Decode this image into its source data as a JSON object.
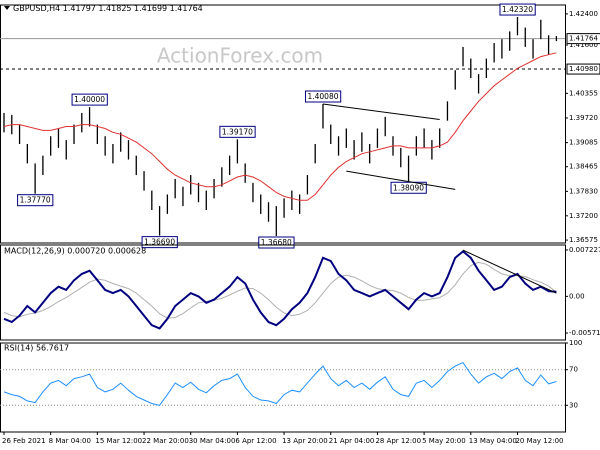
{
  "watermark": "ActionForex.com",
  "chart_data": [
    {
      "type": "ohlc",
      "title": "GBPUSD,H4 1.41797 1.41825 1.41699 1.41764",
      "color": "#000000",
      "high": [
        1.3985,
        1.398,
        1.3955,
        1.3905,
        1.3855,
        1.3875,
        1.3925,
        1.3945,
        1.3915,
        1.3955,
        1.3985,
        1.4,
        1.3955,
        1.3925,
        1.3905,
        1.3935,
        1.3915,
        1.3875,
        1.3835,
        1.3785,
        1.3745,
        1.3775,
        1.3815,
        1.3795,
        1.3825,
        1.3805,
        1.3785,
        1.3815,
        1.3845,
        1.3875,
        1.3917,
        1.3855,
        1.3805,
        1.3775,
        1.3755,
        1.3745,
        1.3765,
        1.3785,
        1.3775,
        1.3825,
        1.3905,
        1.4008,
        1.3955,
        1.3925,
        1.3945,
        1.3915,
        1.3935,
        1.3905,
        1.3945,
        1.3975,
        1.3925,
        1.3895,
        1.3875,
        1.3925,
        1.3945,
        1.3915,
        1.3945,
        1.4015,
        1.4095,
        1.4155,
        1.4125,
        1.4085,
        1.4125,
        1.4165,
        1.4175,
        1.4195,
        1.4232,
        1.4205,
        1.4175,
        1.4225,
        1.4185,
        1.4183
      ],
      "low": [
        1.3935,
        1.393,
        1.3905,
        1.3855,
        1.3777,
        1.3825,
        1.3875,
        1.3895,
        1.3865,
        1.3905,
        1.3935,
        1.395,
        1.3905,
        1.3875,
        1.3855,
        1.3885,
        1.3865,
        1.3825,
        1.3785,
        1.3735,
        1.3669,
        1.3725,
        1.3765,
        1.3745,
        1.3775,
        1.3755,
        1.3735,
        1.3765,
        1.3795,
        1.3825,
        1.3855,
        1.3805,
        1.3755,
        1.3725,
        1.3705,
        1.3668,
        1.3715,
        1.3735,
        1.3725,
        1.3775,
        1.3855,
        1.3945,
        1.3905,
        1.3875,
        1.3895,
        1.3865,
        1.3885,
        1.3855,
        1.3895,
        1.3925,
        1.3875,
        1.3845,
        1.3809,
        1.3875,
        1.3895,
        1.3865,
        1.3895,
        1.3965,
        1.4045,
        1.4105,
        1.4075,
        1.4035,
        1.4075,
        1.4115,
        1.4125,
        1.4145,
        1.4185,
        1.4155,
        1.4125,
        1.4175,
        1.4135,
        1.417
      ],
      "ma": {
        "color": "#e03030",
        "values": [
          1.395,
          1.3955,
          1.3955,
          1.395,
          1.3945,
          1.394,
          1.394,
          1.3945,
          1.395,
          1.395,
          1.3955,
          1.3955,
          1.395,
          1.3945,
          1.3935,
          1.393,
          1.392,
          1.391,
          1.3895,
          1.388,
          1.386,
          1.384,
          1.3825,
          1.3815,
          1.3805,
          1.38,
          1.3795,
          1.3795,
          1.38,
          1.381,
          1.382,
          1.3825,
          1.382,
          1.381,
          1.3795,
          1.378,
          1.377,
          1.3765,
          1.376,
          1.376,
          1.3775,
          1.38,
          1.3825,
          1.3845,
          1.386,
          1.387,
          1.388,
          1.3885,
          1.389,
          1.3895,
          1.39,
          1.39,
          1.3895,
          1.3895,
          1.3895,
          1.3895,
          1.39,
          1.391,
          1.3935,
          1.3965,
          1.399,
          1.4015,
          1.4035,
          1.4055,
          1.407,
          1.4085,
          1.41,
          1.411,
          1.412,
          1.413,
          1.4135,
          1.414
        ]
      },
      "ylim": [
        1.365,
        1.4263
      ],
      "yticks": [
        {
          "value": 1.424,
          "label": "1.42400"
        },
        {
          "value": 1.416,
          "label": "1.41600"
        },
        {
          "value": 1.40355,
          "label": "1.40355"
        },
        {
          "value": 1.3972,
          "label": "1.39720"
        },
        {
          "value": 1.39085,
          "label": "1.39085"
        },
        {
          "value": 1.38465,
          "label": "1.38465"
        },
        {
          "value": 1.3783,
          "label": "1.37830"
        },
        {
          "value": 1.372,
          "label": "1.37200"
        },
        {
          "value": 1.36575,
          "label": "1.36575"
        }
      ],
      "levels": [
        {
          "value": 1.41764,
          "label": "1.41764",
          "style": "solid"
        },
        {
          "value": 1.4098,
          "label": "1.40980",
          "style": "dashed"
        }
      ],
      "annotations": [
        {
          "value": 1.4,
          "label": "1.40000"
        },
        {
          "value": 1.3777,
          "label": "1.37770"
        },
        {
          "value": 1.3917,
          "label": "1.39170"
        },
        {
          "value": 1.3669,
          "label": "1.36690"
        },
        {
          "value": 1.3668,
          "label": "1.36680"
        },
        {
          "value": 1.4008,
          "label": "1.40080"
        },
        {
          "value": 1.3809,
          "label": "1.38090"
        },
        {
          "value": 1.4232,
          "label": "1.42320"
        }
      ],
      "trendlines": [
        {
          "from": [
            41,
            1.4008
          ],
          "to": [
            56,
            1.3968
          ]
        },
        {
          "from": [
            44,
            1.3835
          ],
          "to": [
            58,
            1.3788
          ]
        }
      ]
    },
    {
      "type": "macd",
      "title": "MACD(12,26,9) 0.000720 0.000628",
      "series": [
        {
          "color": "#000080",
          "values": [
            -0.0035,
            -0.004,
            -0.003,
            -0.0015,
            -0.0025,
            -0.001,
            0.0005,
            0.0015,
            0.001,
            0.0025,
            0.0035,
            0.004,
            0.0025,
            0.001,
            0.0005,
            0.001,
            0.0,
            -0.0015,
            -0.003,
            -0.0045,
            -0.005,
            -0.0035,
            -0.0015,
            -0.0005,
            0.0005,
            0.0,
            -0.001,
            -0.0005,
            0.0005,
            0.0015,
            0.003,
            0.002,
            -0.0005,
            -0.0025,
            -0.004,
            -0.0045,
            -0.0035,
            -0.002,
            -0.001,
            0.0005,
            0.003,
            0.006,
            0.0055,
            0.0035,
            0.0025,
            0.001,
            0.0005,
            0.0,
            0.0005,
            0.001,
            0.0,
            -0.001,
            -0.002,
            -0.0005,
            0.0005,
            0.0,
            0.0005,
            0.003,
            0.006,
            0.007,
            0.006,
            0.004,
            0.0025,
            0.001,
            0.0015,
            0.003,
            0.0035,
            0.002,
            0.001,
            0.0015,
            0.0008,
            0.00072
          ]
        },
        {
          "color": "#b0b0b0",
          "values": [
            -0.0025,
            -0.003,
            -0.0032,
            -0.0028,
            -0.0026,
            -0.0022,
            -0.0016,
            -0.0008,
            -0.0002,
            0.0006,
            0.0014,
            0.0022,
            0.0027,
            0.0025,
            0.002,
            0.0016,
            0.0012,
            0.0005,
            -0.0005,
            -0.0015,
            -0.0027,
            -0.0034,
            -0.0033,
            -0.0027,
            -0.0018,
            -0.001,
            -0.0008,
            -0.0006,
            -0.0003,
            0.0002,
            0.0008,
            0.0013,
            0.0012,
            0.0005,
            -0.0005,
            -0.0017,
            -0.0026,
            -0.003,
            -0.0028,
            -0.0022,
            -0.001,
            0.0005,
            0.002,
            0.003,
            0.0033,
            0.003,
            0.0024,
            0.0017,
            0.0012,
            0.001,
            0.0009,
            0.0005,
            -0.0002,
            -0.0006,
            -0.0006,
            -0.0004,
            -0.0002,
            0.0005,
            0.0018,
            0.0035,
            0.0048,
            0.0053,
            0.005,
            0.0042,
            0.0035,
            0.0032,
            0.0032,
            0.0031,
            0.0026,
            0.0022,
            0.0016,
            0.000628
          ]
        }
      ],
      "ylim": [
        -0.0068,
        0.008
      ],
      "yticks": [
        0.007227,
        {
          "value": 0,
          "label": "0.00"
        },
        -0.005714
      ],
      "trendlines": [
        {
          "from": [
            59,
            0.0072
          ],
          "to": [
            71,
            0.0005
          ]
        }
      ]
    },
    {
      "type": "rsi",
      "title": "RSI(14) 56.7617",
      "color": "#1e90ff",
      "values": [
        45,
        42,
        40,
        35,
        33,
        45,
        55,
        58,
        52,
        60,
        62,
        65,
        50,
        45,
        48,
        55,
        47,
        40,
        36,
        32,
        30,
        42,
        55,
        50,
        56,
        48,
        44,
        52,
        58,
        60,
        65,
        50,
        40,
        36,
        35,
        32,
        42,
        47,
        45,
        55,
        65,
        74,
        60,
        52,
        58,
        50,
        55,
        48,
        56,
        62,
        48,
        42,
        40,
        55,
        58,
        50,
        58,
        68,
        74,
        78,
        65,
        55,
        62,
        66,
        60,
        68,
        72,
        58,
        52,
        64,
        54,
        56.7617
      ],
      "ylim": [
        0,
        100
      ],
      "yticks": [
        30,
        70,
        100
      ],
      "xticks": [
        {
          "value": 0,
          "label": "26 Feb 2021"
        },
        {
          "value": 6,
          "label": "8 Mar 04:00"
        },
        {
          "value": 12,
          "label": "15 Mar 12:00"
        },
        {
          "value": 18,
          "label": "22 Mar 20:00"
        },
        {
          "value": 24,
          "label": "30 Mar 04:00"
        },
        {
          "value": 30,
          "label": "6 Apr 12:00"
        },
        {
          "value": 36,
          "label": "13 Apr 20:00"
        },
        {
          "value": 42,
          "label": "21 Apr 04:00"
        },
        {
          "value": 48,
          "label": "28 Apr 12:00"
        },
        {
          "value": 54,
          "label": "5 May 20:00"
        },
        {
          "value": 60,
          "label": "13 May 04:00"
        },
        {
          "value": 66,
          "label": "20 May 12:00"
        }
      ]
    }
  ]
}
